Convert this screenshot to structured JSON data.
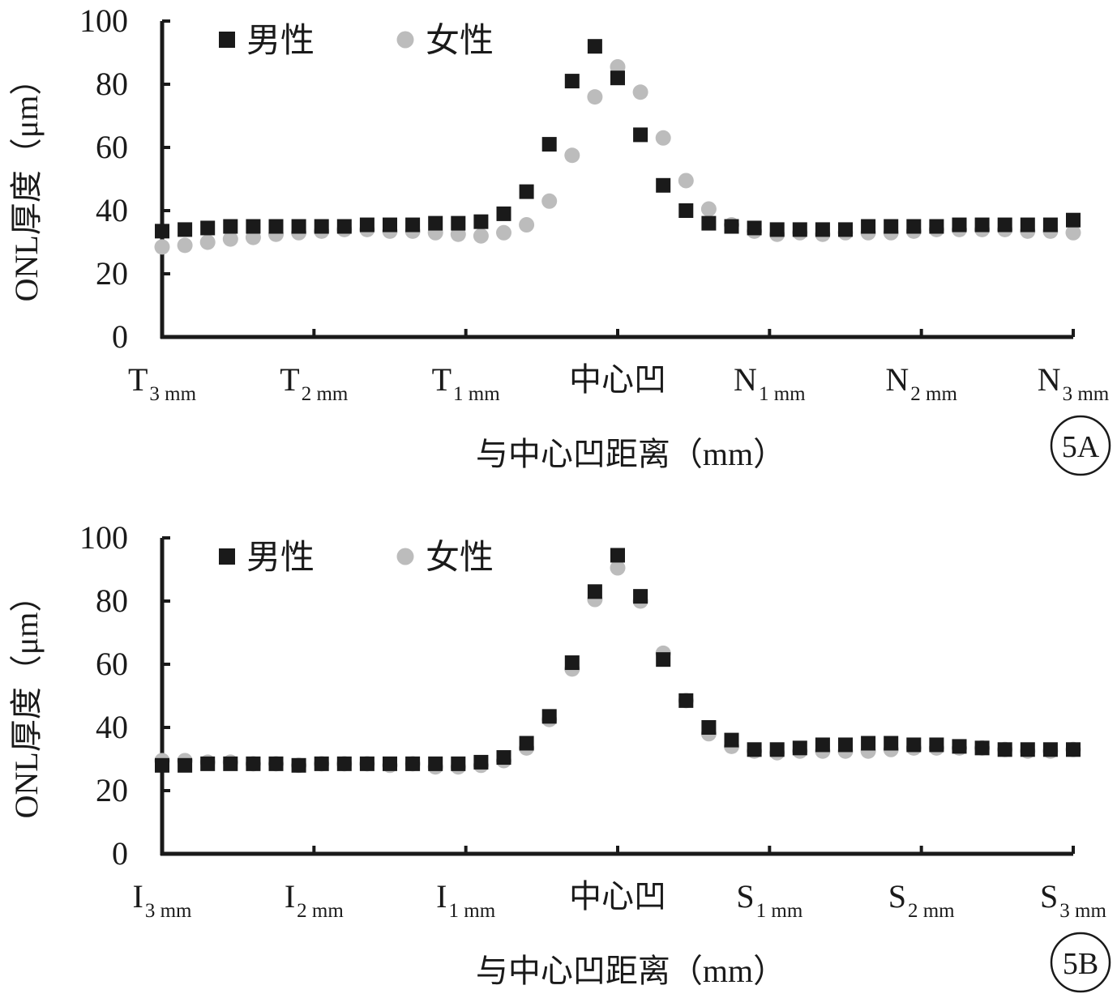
{
  "colors": {
    "male": "#1a1a1a",
    "female": "#bcbcbc",
    "axis": "#1a1a1a"
  },
  "legend_icons": {
    "male": "filled-square-marker",
    "female": "filled-circle-marker"
  },
  "chart_data": [
    {
      "type": "scatter",
      "badge": "5A",
      "ylabel": "ONL厚度（μm）",
      "xlabel": "与中心凹距离（mm）",
      "ylim": [
        0,
        100
      ],
      "yticks": [
        "0",
        "20",
        "40",
        "60",
        "80",
        "100"
      ],
      "x_range": [
        -3,
        3
      ],
      "x_ticks": [
        {
          "main": "T",
          "sub": "3 mm"
        },
        {
          "main": "T",
          "sub": "2 mm"
        },
        {
          "main": "T",
          "sub": "1 mm"
        },
        {
          "main": "中心凹",
          "sub": ""
        },
        {
          "main": "N",
          "sub": "1 mm"
        },
        {
          "main": "N",
          "sub": "2 mm"
        },
        {
          "main": "N",
          "sub": "3 mm"
        }
      ],
      "x": [
        -3,
        -2.85,
        -2.7,
        -2.55,
        -2.4,
        -2.25,
        -2.1,
        -1.95,
        -1.8,
        -1.65,
        -1.5,
        -1.35,
        -1.2,
        -1.05,
        -0.9,
        -0.75,
        -0.6,
        -0.45,
        -0.3,
        -0.15,
        0,
        0.15,
        0.3,
        0.45,
        0.6,
        0.75,
        0.9,
        1.05,
        1.2,
        1.35,
        1.5,
        1.65,
        1.8,
        1.95,
        2.1,
        2.25,
        2.4,
        2.55,
        2.7,
        2.85,
        3
      ],
      "legend_position": "top-left",
      "series": [
        {
          "name": "男性",
          "marker": "square",
          "values": [
            33.5,
            34,
            34.5,
            35,
            35,
            35,
            35,
            35,
            35,
            35.5,
            35.5,
            35.5,
            36,
            36,
            36.5,
            39,
            46,
            61,
            81,
            92,
            82,
            64,
            48,
            40,
            36,
            35,
            34.5,
            34,
            34,
            34,
            34,
            35,
            35,
            35,
            35,
            35.5,
            35.5,
            35.5,
            35.5,
            35.5,
            37
          ]
        },
        {
          "name": "女性",
          "marker": "circle",
          "values": [
            28.5,
            29,
            30,
            31,
            31.5,
            32.5,
            33,
            33.5,
            34,
            34,
            33.5,
            33.5,
            33,
            32.5,
            32,
            33,
            35.5,
            43,
            57.5,
            76,
            85.5,
            77.5,
            63,
            49.5,
            40.5,
            35.5,
            33.5,
            32.5,
            33,
            32.5,
            33,
            33,
            33,
            33.5,
            34,
            34,
            34,
            34,
            33.5,
            33.5,
            33
          ]
        }
      ]
    },
    {
      "type": "scatter",
      "badge": "5B",
      "ylabel": "ONL厚度（μm）",
      "xlabel": "与中心凹距离（mm）",
      "ylim": [
        0,
        100
      ],
      "yticks": [
        "0",
        "20",
        "40",
        "60",
        "80",
        "100"
      ],
      "x_range": [
        -3,
        3
      ],
      "x_ticks": [
        {
          "main": "I",
          "sub": "3 mm"
        },
        {
          "main": "I",
          "sub": "2 mm"
        },
        {
          "main": "I",
          "sub": "1 mm"
        },
        {
          "main": "中心凹",
          "sub": ""
        },
        {
          "main": "S",
          "sub": "1 mm"
        },
        {
          "main": "S",
          "sub": "2 mm"
        },
        {
          "main": "S",
          "sub": "3 mm"
        }
      ],
      "x": [
        -3,
        -2.85,
        -2.7,
        -2.55,
        -2.4,
        -2.25,
        -2.1,
        -1.95,
        -1.8,
        -1.65,
        -1.5,
        -1.35,
        -1.2,
        -1.05,
        -0.9,
        -0.75,
        -0.6,
        -0.45,
        -0.3,
        -0.15,
        0,
        0.15,
        0.3,
        0.45,
        0.6,
        0.75,
        0.9,
        1.05,
        1.2,
        1.35,
        1.5,
        1.65,
        1.8,
        1.95,
        2.1,
        2.25,
        2.4,
        2.55,
        2.7,
        2.85,
        3
      ],
      "legend_position": "top-left",
      "series": [
        {
          "name": "男性",
          "marker": "square",
          "values": [
            28,
            28,
            28.5,
            28.5,
            28.5,
            28.5,
            28,
            28.5,
            28.5,
            28.5,
            28.5,
            28.5,
            28.5,
            28.5,
            29,
            30.5,
            35,
            43.5,
            60.5,
            83,
            94.5,
            81.5,
            61.5,
            48.5,
            40,
            36,
            33,
            33,
            33.5,
            34.5,
            34.5,
            35,
            35,
            34.5,
            34.5,
            34,
            33.5,
            33,
            33,
            33,
            33
          ]
        },
        {
          "name": "女性",
          "marker": "circle",
          "values": [
            29.5,
            29.5,
            29,
            29,
            28.5,
            28.5,
            28,
            28.5,
            28.5,
            28.5,
            28,
            28.5,
            27.5,
            27.5,
            28,
            29.5,
            33.5,
            42.5,
            58.5,
            80.5,
            90.5,
            80,
            63.5,
            48.5,
            38,
            34,
            32.5,
            32,
            32.5,
            32.5,
            32.5,
            32.5,
            33,
            33.5,
            33.5,
            33.5,
            33.5,
            33,
            32.5,
            32.5,
            33
          ]
        }
      ]
    }
  ]
}
